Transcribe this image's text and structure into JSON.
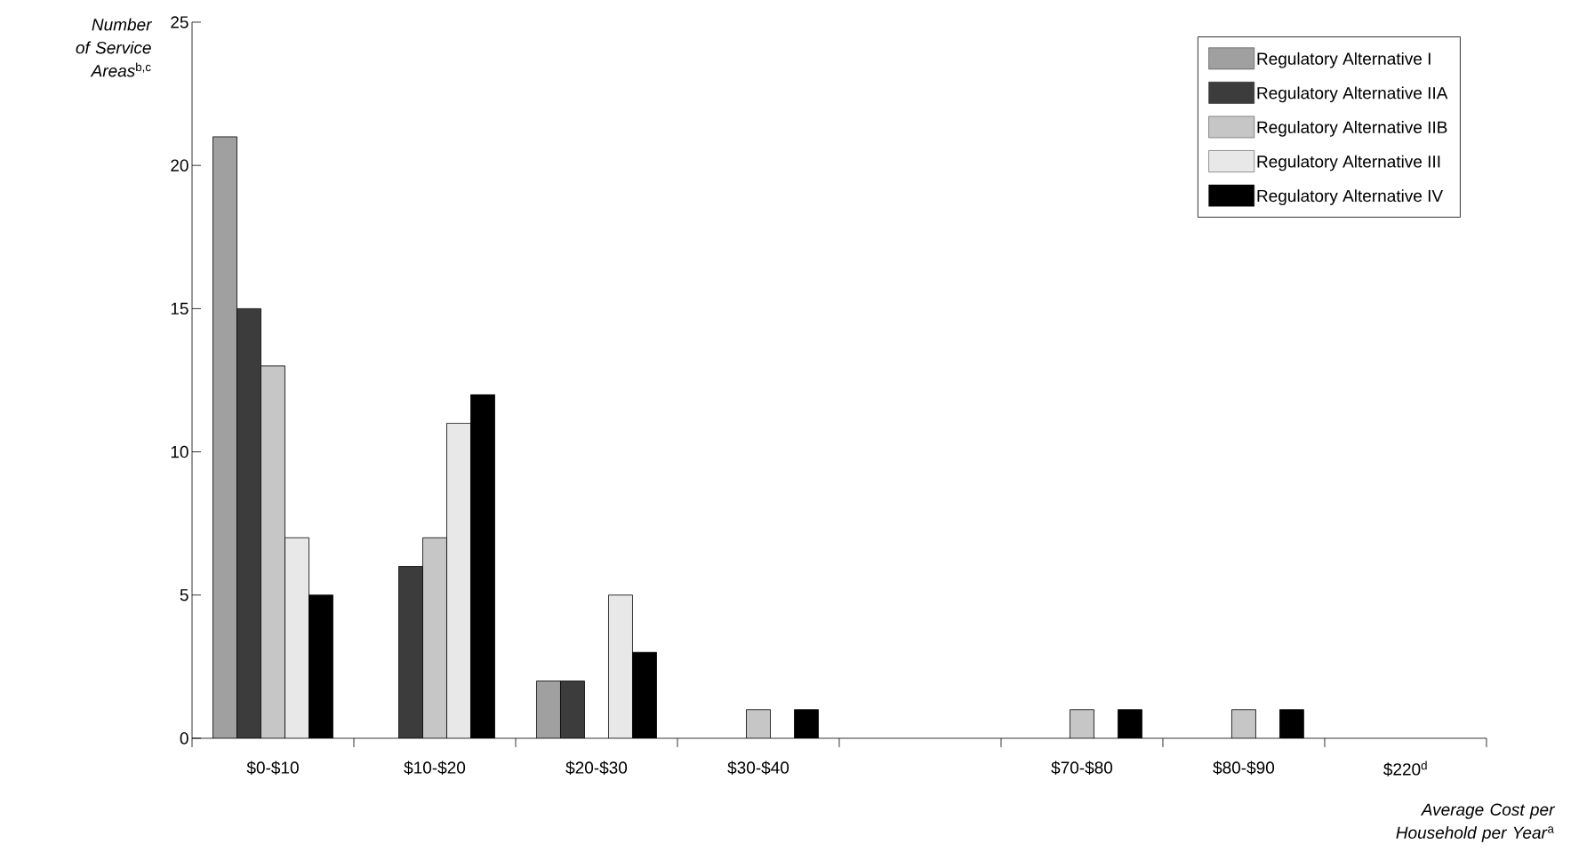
{
  "chart_data": {
    "type": "bar",
    "xlabel": "*Average Cost per Household per Year*$^{a}$",
    "ylabel": "*Number of Service Areas*$^{b,c}$",
    "categories": [
      "$0-$10",
      "$10-$20",
      "$20-$30",
      "$30-$40",
      null,
      "$70-$80",
      "$80-$90",
      "$220$^{d}$"
    ],
    "series": [
      {
        "name": "Regulatory Alternative I",
        "color": "#a0a0a0",
        "values": [
          21,
          null,
          2,
          null,
          null,
          null,
          null,
          null
        ]
      },
      {
        "name": "Regulatory Alternative IIA",
        "color": "#3c3c3c",
        "values": [
          15,
          6,
          2,
          null,
          null,
          null,
          null,
          null
        ]
      },
      {
        "name": "Regulatory Alternative IIB",
        "color": "#c6c6c6",
        "values": [
          13,
          7,
          null,
          1,
          null,
          1,
          1,
          null
        ]
      },
      {
        "name": "Regulatory Alternative III",
        "color": "#e8e8e8",
        "values": [
          7,
          11,
          5,
          null,
          null,
          null,
          null,
          null
        ]
      },
      {
        "name": "Regulatory Alternative IV",
        "color": "#000000",
        "values": [
          5,
          12,
          3,
          1,
          null,
          1,
          1,
          null
        ]
      }
    ],
    "ylim": [
      0,
      25
    ],
    "yticks": [
      0,
      5,
      10,
      15,
      20,
      25
    ],
    "legend": "top right"
  }
}
